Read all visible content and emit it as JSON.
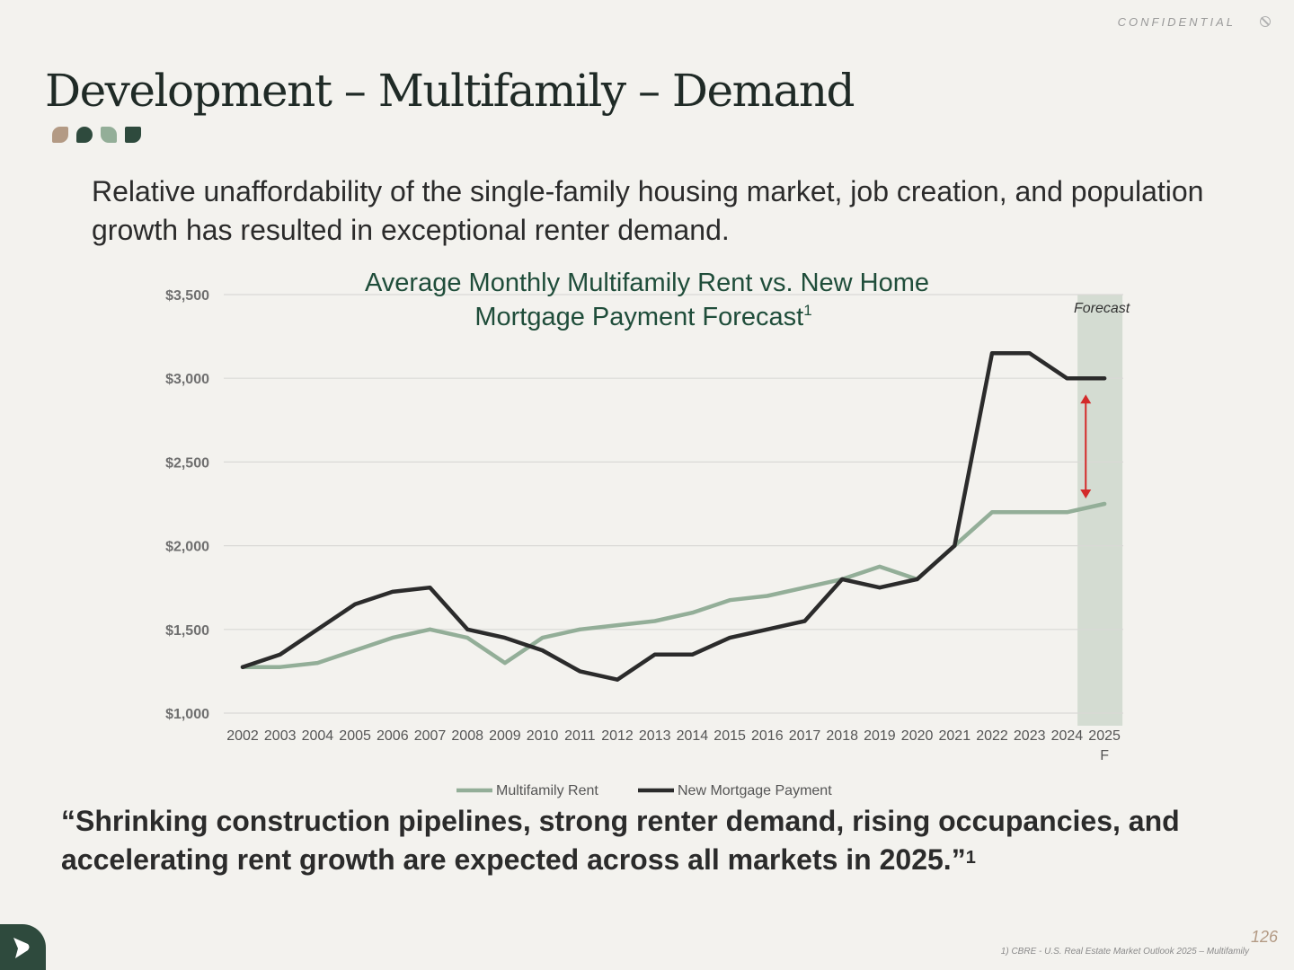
{
  "header": {
    "confidential": "CONFIDENTIAL",
    "title": "Development – Multifamily – Demand"
  },
  "subtitle": "Relative unaffordability of the single-family housing market, job creation, and population growth has resulted in exceptional renter demand.",
  "quote": {
    "text": "“Shrinking construction pipelines, strong renter demand, rising occupancies, and accelerating rent growth are expected across all markets in 2025.”",
    "marker": "1"
  },
  "footer": {
    "footnote": "1) CBRE - U.S. Real Estate Market Outlook 2025 – Multifamily",
    "page_number": "126"
  },
  "colors": {
    "background": "#f3f2ee",
    "rent_series": "#93ae98",
    "mortgage_series": "#2b2b2b",
    "title_green": "#1f4d3a",
    "forecast_band": "#d4dcd2",
    "arrow": "#d32a2a"
  },
  "chart_data": {
    "type": "line",
    "title": "Average Monthly Multifamily Rent vs. New Home Mortgage Payment Forecast",
    "title_superscript": "1",
    "categories": [
      "2002",
      "2003",
      "2004",
      "2005",
      "2006",
      "2007",
      "2008",
      "2009",
      "2010",
      "2011",
      "2012",
      "2013",
      "2014",
      "2015",
      "2016",
      "2017",
      "2018",
      "2019",
      "2020",
      "2021",
      "2022",
      "2023",
      "2024",
      "2025 F"
    ],
    "series": [
      {
        "name": "Multifamily Rent",
        "color": "#93ae98",
        "values": [
          1275,
          1275,
          1300,
          1375,
          1450,
          1500,
          1450,
          1300,
          1450,
          1500,
          1525,
          1550,
          1600,
          1675,
          1700,
          1750,
          1800,
          1875,
          1800,
          2000,
          2200,
          2200,
          2200,
          2250
        ]
      },
      {
        "name": "New Mortgage Payment",
        "color": "#2b2b2b",
        "values": [
          1275,
          1350,
          1500,
          1650,
          1725,
          1750,
          1500,
          1450,
          1375,
          1250,
          1200,
          1350,
          1350,
          1450,
          1500,
          1550,
          1800,
          1750,
          1800,
          2000,
          3150,
          3150,
          3000,
          3000
        ]
      }
    ],
    "y_ticks": [
      "$1,000",
      "$1,500",
      "$2,000",
      "$2,500",
      "$3,000",
      "$3,500"
    ],
    "y_tick_values": [
      1000,
      1500,
      2000,
      2500,
      3000,
      3500
    ],
    "ylim": [
      1000,
      3500
    ],
    "forecast_label": "Forecast",
    "forecast_category": "2025 F",
    "gap_arrow": {
      "category": "2024.5",
      "from": 2250,
      "to": 3000
    },
    "grid": true,
    "legend": "bottom-center"
  }
}
